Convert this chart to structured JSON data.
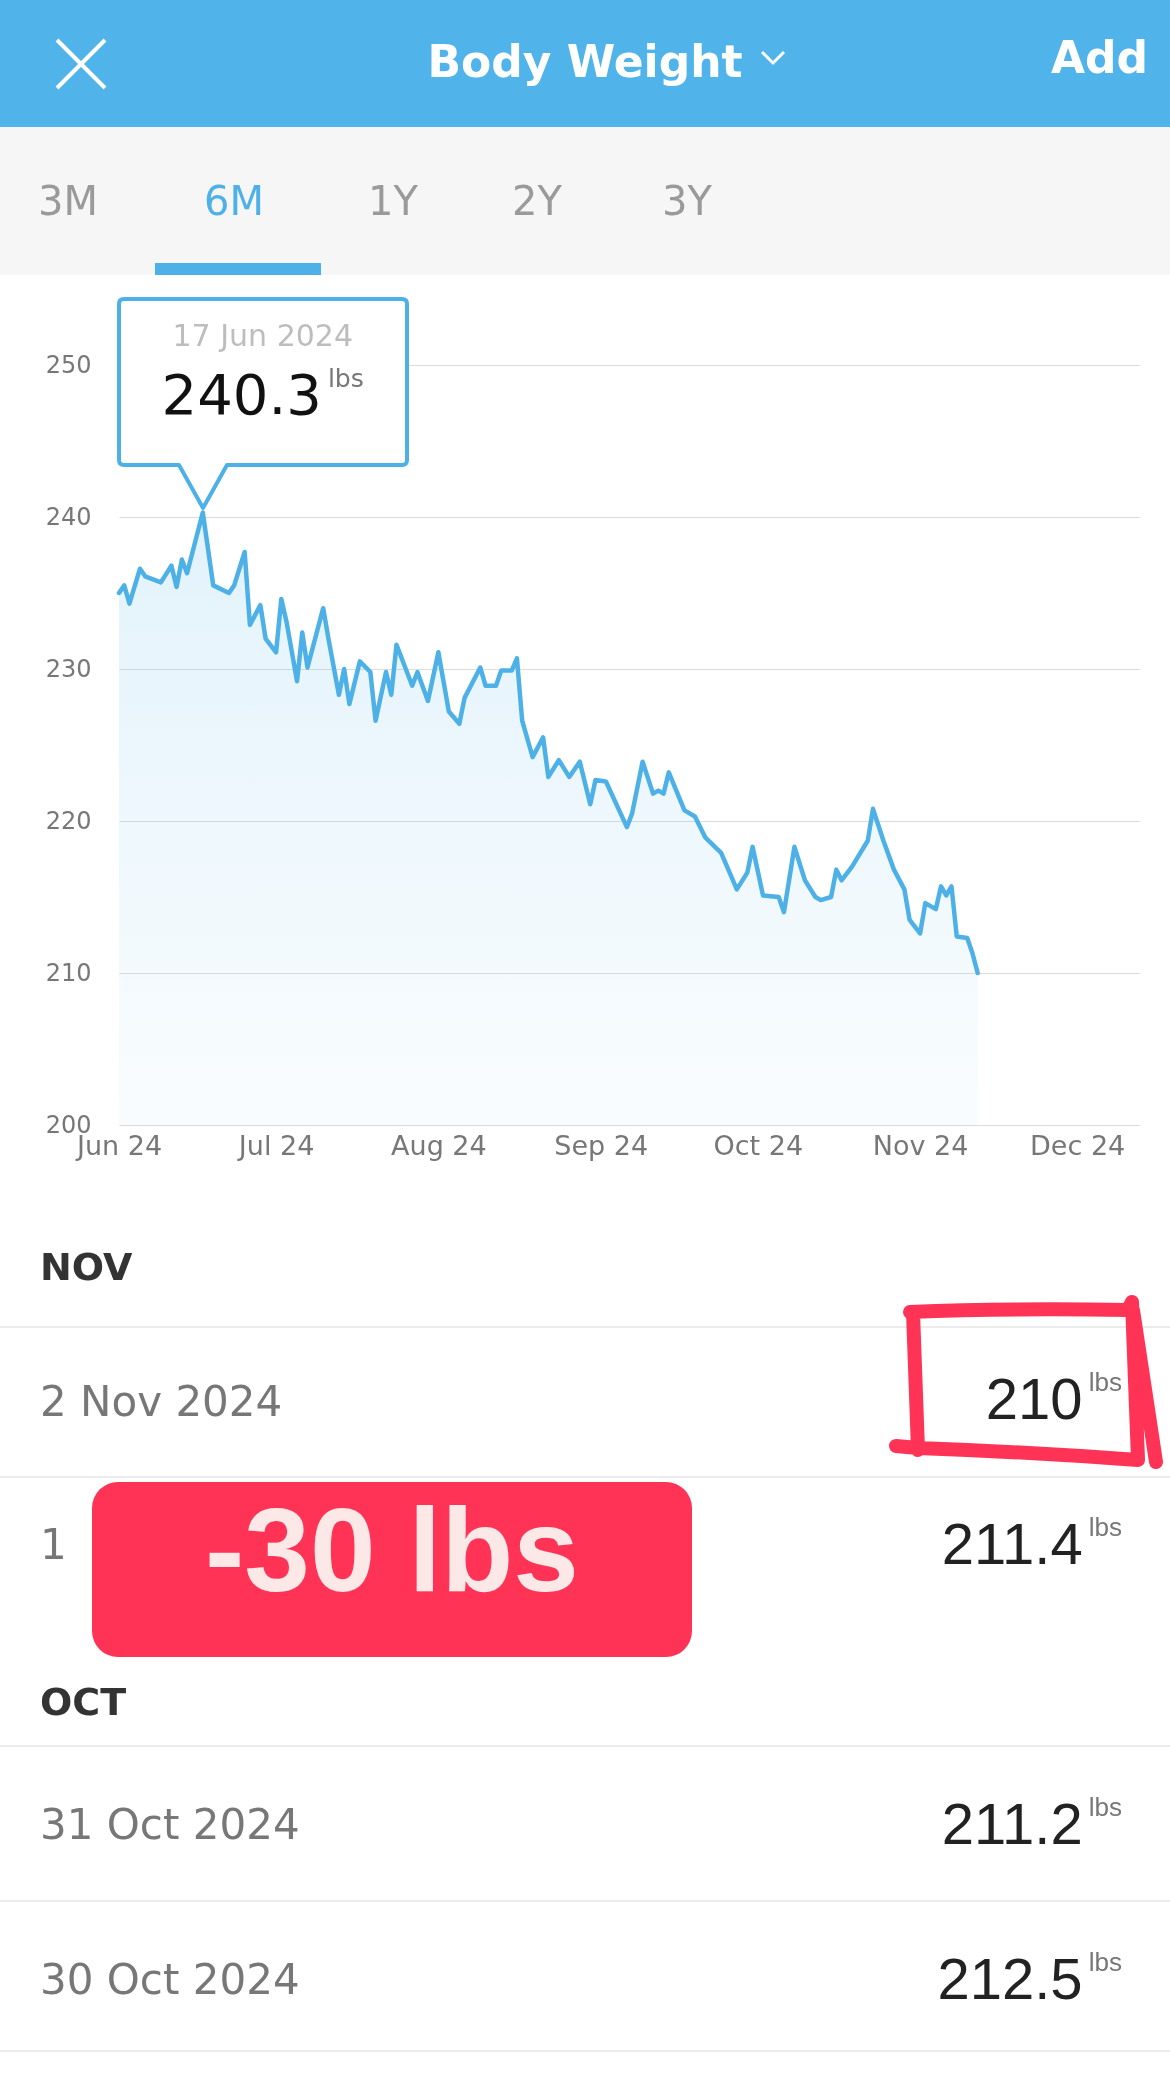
{
  "chart_data": {
    "type": "area",
    "title": "Body Weight",
    "x": [
      "2024-06-01",
      "2024-06-02",
      "2024-06-03",
      "2024-06-05",
      "2024-06-06",
      "2024-06-09",
      "2024-06-11",
      "2024-06-12",
      "2024-06-13",
      "2024-06-14",
      "2024-06-17",
      "2024-06-18",
      "2024-06-19",
      "2024-06-22",
      "2024-06-23",
      "2024-06-25",
      "2024-06-26",
      "2024-06-28",
      "2024-06-29",
      "2024-07-01",
      "2024-07-02",
      "2024-07-03",
      "2024-07-05",
      "2024-07-06",
      "2024-07-07",
      "2024-07-10",
      "2024-07-11",
      "2024-07-13",
      "2024-07-14",
      "2024-07-15",
      "2024-07-17",
      "2024-07-19",
      "2024-07-20",
      "2024-07-22",
      "2024-07-23",
      "2024-07-24",
      "2024-07-27",
      "2024-07-28",
      "2024-07-30",
      "2024-08-01",
      "2024-08-03",
      "2024-08-05",
      "2024-08-06",
      "2024-08-09",
      "2024-08-10",
      "2024-08-12",
      "2024-08-13",
      "2024-08-15",
      "2024-08-16",
      "2024-08-17",
      "2024-08-19",
      "2024-08-21",
      "2024-08-22",
      "2024-08-24",
      "2024-08-26",
      "2024-08-28",
      "2024-08-30",
      "2024-08-31",
      "2024-09-02",
      "2024-09-06",
      "2024-09-07",
      "2024-09-09",
      "2024-09-11",
      "2024-09-12",
      "2024-09-13",
      "2024-09-14",
      "2024-09-17",
      "2024-09-19",
      "2024-09-21",
      "2024-09-24",
      "2024-09-27",
      "2024-09-29",
      "2024-09-30",
      "2024-10-02",
      "2024-10-05",
      "2024-10-06",
      "2024-10-08",
      "2024-10-10",
      "2024-10-12",
      "2024-10-13",
      "2024-10-15",
      "2024-10-16",
      "2024-10-17",
      "2024-10-19",
      "2024-10-22",
      "2024-10-23",
      "2024-10-25",
      "2024-10-27",
      "2024-10-29",
      "2024-10-30",
      "2024-11-01",
      "2024-11-02",
      "2024-11-04",
      "2024-11-05",
      "2024-11-06",
      "2024-11-07",
      "2024-11-08",
      "2024-11-10",
      "2024-11-11",
      "2024-11-12"
    ],
    "series": [
      {
        "color": "#4db1e8",
        "values": [
          235.0,
          235.5,
          234.3,
          236.6,
          236.1,
          235.7,
          236.8,
          235.4,
          237.2,
          236.3,
          240.3,
          237.9,
          235.5,
          235.0,
          235.5,
          237.7,
          232.9,
          234.2,
          232.0,
          231.1,
          234.6,
          233.1,
          229.2,
          232.4,
          230.1,
          234.0,
          232.0,
          228.3,
          230.0,
          227.7,
          230.5,
          229.8,
          226.6,
          229.8,
          228.3,
          231.6,
          228.9,
          229.8,
          227.9,
          231.1,
          227.2,
          226.4,
          228.1,
          230.1,
          228.9,
          228.9,
          229.9,
          229.9,
          230.7,
          226.6,
          224.2,
          225.5,
          222.9,
          224.0,
          222.9,
          223.9,
          221.1,
          222.7,
          222.6,
          219.6,
          220.5,
          223.9,
          221.8,
          222.0,
          221.8,
          223.2,
          220.7,
          220.3,
          218.9,
          217.9,
          215.5,
          216.6,
          218.3,
          215.1,
          215.0,
          214.0,
          218.3,
          216.1,
          215.0,
          214.8,
          215.0,
          216.8,
          216.1,
          217.0,
          218.7,
          220.8,
          218.7,
          216.8,
          215.5,
          213.5,
          212.6,
          214.6,
          214.2,
          215.7,
          215.1,
          215.7,
          212.4,
          212.3,
          211.3,
          210.0
        ]
      }
    ],
    "xlim": [
      "2024-06-01",
      "2024-12-13"
    ],
    "xticks": [
      {
        "value": "2024-06-01",
        "label": "Jun 24"
      },
      {
        "value": "2024-07-01",
        "label": "Jul 24"
      },
      {
        "value": "2024-08-01",
        "label": "Aug 24"
      },
      {
        "value": "2024-09-01",
        "label": "Sep 24"
      },
      {
        "value": "2024-10-01",
        "label": "Oct 24"
      },
      {
        "value": "2024-11-01",
        "label": "Nov 24"
      },
      {
        "value": "2024-12-01",
        "label": "Dec 24"
      }
    ],
    "ylim": [
      200,
      250
    ],
    "yticks": [
      200,
      210,
      220,
      230,
      240,
      250
    ],
    "grid": "y",
    "annotations": [
      "Add",
      "3M",
      "6M",
      "1Y",
      "2Y",
      "3Y",
      "17 Jun 2024",
      {
        "text": "240.3$^{lbs}$",
        "x": "2024-06-17",
        "y": 240.3
      },
      "NOV",
      "2 Nov 2024",
      "210$^{lbs}$",
      "1",
      "211.4$^{lbs}$",
      "OCT",
      "31 Oct 2024",
      "211.2$^{lbs}$",
      "30 Oct 2024",
      "212.5$^{lbs}$",
      "-30 lbs"
    ]
  }
}
